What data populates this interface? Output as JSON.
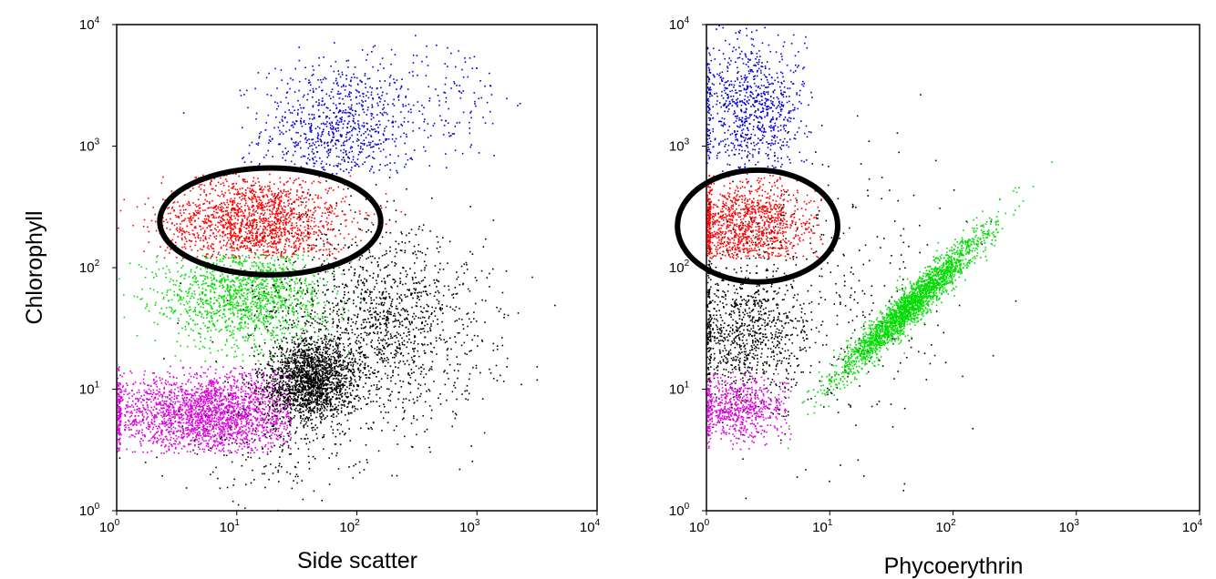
{
  "chart_data": [
    {
      "type": "scatter",
      "id": "left",
      "xlabel": "Side scatter",
      "ylabel": "Chlorophyll",
      "x_scale": "log",
      "y_scale": "log",
      "xlim": [
        1,
        10000
      ],
      "ylim": [
        1,
        10000
      ],
      "x_ticks": [
        {
          "base": "10",
          "exp": "0"
        },
        {
          "base": "10",
          "exp": "1"
        },
        {
          "base": "10",
          "exp": "2"
        },
        {
          "base": "10",
          "exp": "3"
        },
        {
          "base": "10",
          "exp": "4"
        }
      ],
      "y_ticks": [
        {
          "base": "10",
          "exp": "0"
        },
        {
          "base": "10",
          "exp": "1"
        },
        {
          "base": "10",
          "exp": "2"
        },
        {
          "base": "10",
          "exp": "3"
        },
        {
          "base": "10",
          "exp": "4"
        }
      ],
      "grid": false,
      "series": [
        {
          "color": "#0000dd",
          "clusters": [
            {
              "cx": 70,
              "cy": 1400,
              "sx": 0.32,
              "sy": 0.28,
              "n": 900,
              "minY": 600
            },
            {
              "cx": 600,
              "cy": 2500,
              "sx": 0.25,
              "sy": 0.25,
              "n": 120,
              "minY": 600
            }
          ]
        },
        {
          "color": "#ff0000",
          "clusters": [
            {
              "cx": 14,
              "cy": 240,
              "sx": 0.38,
              "sy": 0.2,
              "n": 1800,
              "minY": 120,
              "maxY": 600
            }
          ]
        },
        {
          "color": "#00dd00",
          "clusters": [
            {
              "cx": 12,
              "cy": 60,
              "sx": 0.35,
              "sy": 0.22,
              "n": 1500,
              "minY": 16,
              "maxY": 130
            }
          ]
        },
        {
          "color": "#dd00dd",
          "clusters": [
            {
              "cx": 6,
              "cy": 6.5,
              "sx": 0.45,
              "sy": 0.17,
              "n": 2600,
              "minY": 3,
              "maxY": 16,
              "maxX": 28
            }
          ]
        },
        {
          "color": "#000000",
          "clusters": [
            {
              "cx": 40,
              "cy": 12,
              "sx": 0.18,
              "sy": 0.17,
              "n": 1800
            },
            {
              "cx": 150,
              "cy": 35,
              "sx": 0.45,
              "sy": 0.4,
              "n": 1500
            },
            {
              "cx": 20,
              "cy": 3,
              "sx": 0.4,
              "sy": 0.2,
              "n": 150
            }
          ]
        }
      ],
      "gate": {
        "type": "ellipse",
        "cx": 19,
        "cy": 240,
        "rx_decades": 0.92,
        "ry_decades": 0.44
      }
    },
    {
      "type": "scatter",
      "id": "right",
      "xlabel": "Phycoerythrin",
      "ylabel": "",
      "x_scale": "log",
      "y_scale": "log",
      "xlim": [
        1,
        10000
      ],
      "ylim": [
        1,
        10000
      ],
      "x_ticks": [
        {
          "base": "10",
          "exp": "0"
        },
        {
          "base": "10",
          "exp": "1"
        },
        {
          "base": "10",
          "exp": "2"
        },
        {
          "base": "10",
          "exp": "3"
        },
        {
          "base": "10",
          "exp": "4"
        }
      ],
      "y_ticks": [
        {
          "base": "10",
          "exp": "0"
        },
        {
          "base": "10",
          "exp": "1"
        },
        {
          "base": "10",
          "exp": "2"
        },
        {
          "base": "10",
          "exp": "3"
        },
        {
          "base": "10",
          "exp": "4"
        }
      ],
      "grid": false,
      "series": [
        {
          "color": "#0000dd",
          "clusters": [
            {
              "cx": 2.2,
              "cy": 2000,
              "sx": 0.25,
              "sy": 0.3,
              "n": 900,
              "minY": 600,
              "maxX": 7
            }
          ]
        },
        {
          "color": "#ff0000",
          "clusters": [
            {
              "cx": 2.0,
              "cy": 220,
              "sx": 0.28,
              "sy": 0.2,
              "n": 1300,
              "minY": 120,
              "maxY": 600,
              "maxX": 9
            }
          ]
        },
        {
          "color": "#000000",
          "clusters": [
            {
              "cx": 2,
              "cy": 30,
              "sx": 0.25,
              "sy": 0.28,
              "n": 900,
              "maxX": 9
            },
            {
              "cx": 12,
              "cy": 60,
              "sx": 0.5,
              "sy": 0.6,
              "n": 350
            }
          ]
        },
        {
          "color": "#dd00dd",
          "clusters": [
            {
              "cx": 1.8,
              "cy": 7,
              "sx": 0.2,
              "sy": 0.14,
              "n": 700,
              "minY": 3,
              "maxY": 15,
              "maxX": 5
            }
          ]
        },
        {
          "color": "#00dd00",
          "clusters": [
            {
              "cx": 45,
              "cy": 50,
              "sx": 0.3,
              "sy": 0.3,
              "n": 2400,
              "corr": 0.96
            }
          ]
        }
      ],
      "gate": {
        "type": "ellipse",
        "cx": 2.6,
        "cy": 220,
        "rx_decades": 0.65,
        "ry_decades": 0.46
      }
    }
  ]
}
